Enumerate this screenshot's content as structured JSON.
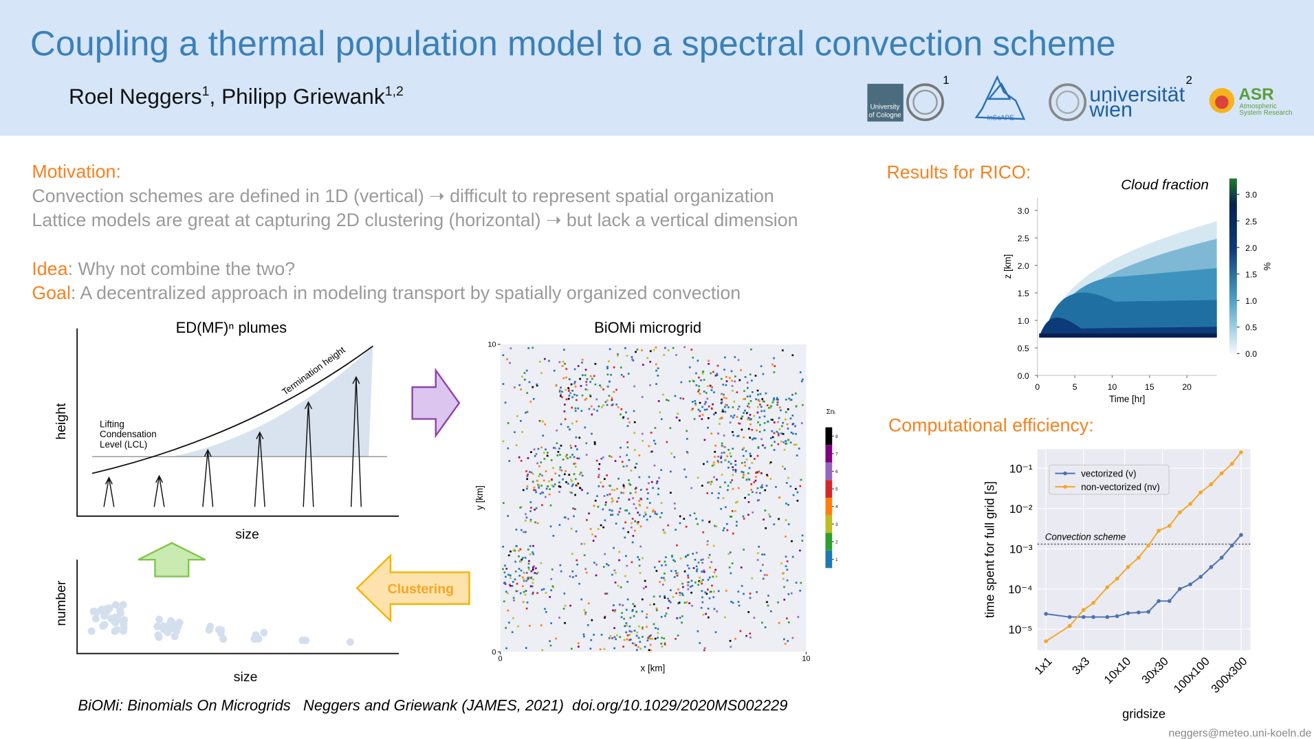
{
  "header": {
    "title": "Coupling a thermal population model to a spectral convection scheme",
    "authors": [
      {
        "name": "Roel Neggers",
        "affiliation": "1"
      },
      {
        "name": "Philipp Griewank",
        "affiliation": "1,2"
      }
    ],
    "author_separator": ", ",
    "logos": {
      "cologne": [
        "University",
        "of Cologne"
      ],
      "inscape": "InScAPE",
      "wien": [
        "universität",
        "wien"
      ],
      "asr": "ASR",
      "asr_sub": [
        "Atmospheric",
        "System Research"
      ]
    },
    "affiliation_marks": [
      "1",
      "2"
    ]
  },
  "motivation": {
    "heading": "Motivation:",
    "lines": [
      "Convection schemes are defined in 1D (vertical) ➝ difficult to represent spatial organization",
      "Lattice models are great at capturing 2D clustering (horizontal) ➝ but lack a vertical dimension"
    ]
  },
  "idea": {
    "label": "Idea",
    "text": ": Why not combine the two?"
  },
  "goal": {
    "label": "Goal",
    "text": ": A decentralized approach in modeling transport by spatially organized convection"
  },
  "plumes": {
    "title": "ED(MF)ⁿ plumes",
    "y_label": "height",
    "x_label": "size",
    "lcl_label": [
      "Lifting",
      "Condensation",
      "Level (LCL)"
    ],
    "termination_label": "Termination height"
  },
  "clusters": {
    "y_label": "number",
    "x_label": "size",
    "arrow_label": "Clustering"
  },
  "microgrid": {
    "title": "BiOMi microgrid",
    "x_label": "x  [km]",
    "y_label": "y  [km]",
    "xlim": [
      0,
      10
    ],
    "ylim": [
      0,
      10
    ],
    "xticks": [
      0,
      10
    ],
    "yticks": [
      0,
      10
    ],
    "colorbar_label": "Σnᵢ",
    "colorbar_ticks": [
      1,
      2,
      3,
      4,
      5,
      6,
      7,
      8
    ],
    "colorbar_colors": [
      "#1f77b4",
      "#2ca02c",
      "#bcbd22",
      "#ff7f0e",
      "#d62728",
      "#9467bd",
      "#800080",
      "#000000"
    ]
  },
  "results": {
    "heading": "Results for RICO:",
    "title": "Cloud fraction",
    "x_label": "Time  [hr]",
    "y_label": "z  [km]",
    "colorbar_label": "%",
    "xlim": [
      0,
      24
    ],
    "ylim": [
      0,
      3.2
    ],
    "xticks": [
      0,
      5,
      10,
      15,
      20
    ],
    "yticks": [
      {
        "value": 0,
        "label": "0.0"
      },
      0.5,
      {
        "value": 1,
        "label": "1.0"
      },
      1.5,
      {
        "value": 2,
        "label": "2.0"
      },
      2.5,
      {
        "value": 3,
        "label": "3.0"
      }
    ],
    "clim": [
      0,
      3.3
    ],
    "colorbar_ticks": [
      {
        "value": 0,
        "label": "0.0"
      },
      0.5,
      {
        "value": 1,
        "label": "1.0"
      },
      1.5,
      {
        "value": 2,
        "label": "2.0"
      },
      2.5,
      {
        "value": 3,
        "label": "3.0"
      }
    ]
  },
  "efficiency": {
    "heading": "Computational efficiency:",
    "type": "line",
    "x_label": "gridsize",
    "y_label": "time spent for full grid  [s]",
    "log_x": true,
    "log_y": true,
    "grid": true,
    "xlim": [
      0.78,
      393
    ],
    "ylim": [
      3e-06,
      0.3
    ],
    "xticks": [
      {
        "value": 1,
        "label": "1x1"
      },
      {
        "value": 3,
        "label": "3x3"
      },
      {
        "value": 10,
        "label": "10x10"
      },
      {
        "value": 30,
        "label": "30x30"
      },
      {
        "value": 100,
        "label": "100x100"
      },
      {
        "value": 300,
        "label": "300x300"
      }
    ],
    "yticks": [
      {
        "value": 1e-05,
        "label": "10⁻⁵"
      },
      {
        "value": 0.0001,
        "label": "10⁻⁴"
      },
      {
        "value": 0.001,
        "label": "10⁻³"
      },
      {
        "value": 0.01,
        "label": "10⁻²"
      },
      {
        "value": 0.1,
        "label": "10⁻¹"
      }
    ],
    "x": [
      1,
      2,
      3,
      4,
      6,
      8,
      11,
      15,
      20,
      27,
      37,
      50,
      68,
      92,
      125,
      170,
      230,
      300
    ],
    "series": [
      {
        "name": "vectorized (v)",
        "color": "#4c72b0",
        "values": [
          2.4e-05,
          2e-05,
          2e-05,
          2e-05,
          2e-05,
          2.1e-05,
          2.5e-05,
          2.6e-05,
          2.7e-05,
          5e-05,
          5e-05,
          0.0001,
          0.00013,
          0.0002,
          0.00035,
          0.0006,
          0.0012,
          0.0022
        ]
      },
      {
        "name": "non-vectorized (nv)",
        "color": "#f5a623",
        "values": [
          5e-06,
          1.2e-05,
          3e-05,
          4.5e-05,
          0.00011,
          0.00018,
          0.00035,
          0.0006,
          0.0012,
          0.0028,
          0.0037,
          0.008,
          0.013,
          0.025,
          0.04,
          0.075,
          0.13,
          0.25
        ]
      }
    ],
    "reference": {
      "label": "Convection scheme",
      "value": 0.0013
    }
  },
  "footer": {
    "citation": "BiOMi: Binomials On Microgrids   Neggers and Griewank (JAMES, 2021)  doi.org/10.1029/2020MS002229",
    "email": "neggers@meteo.uni-koeln.de"
  }
}
